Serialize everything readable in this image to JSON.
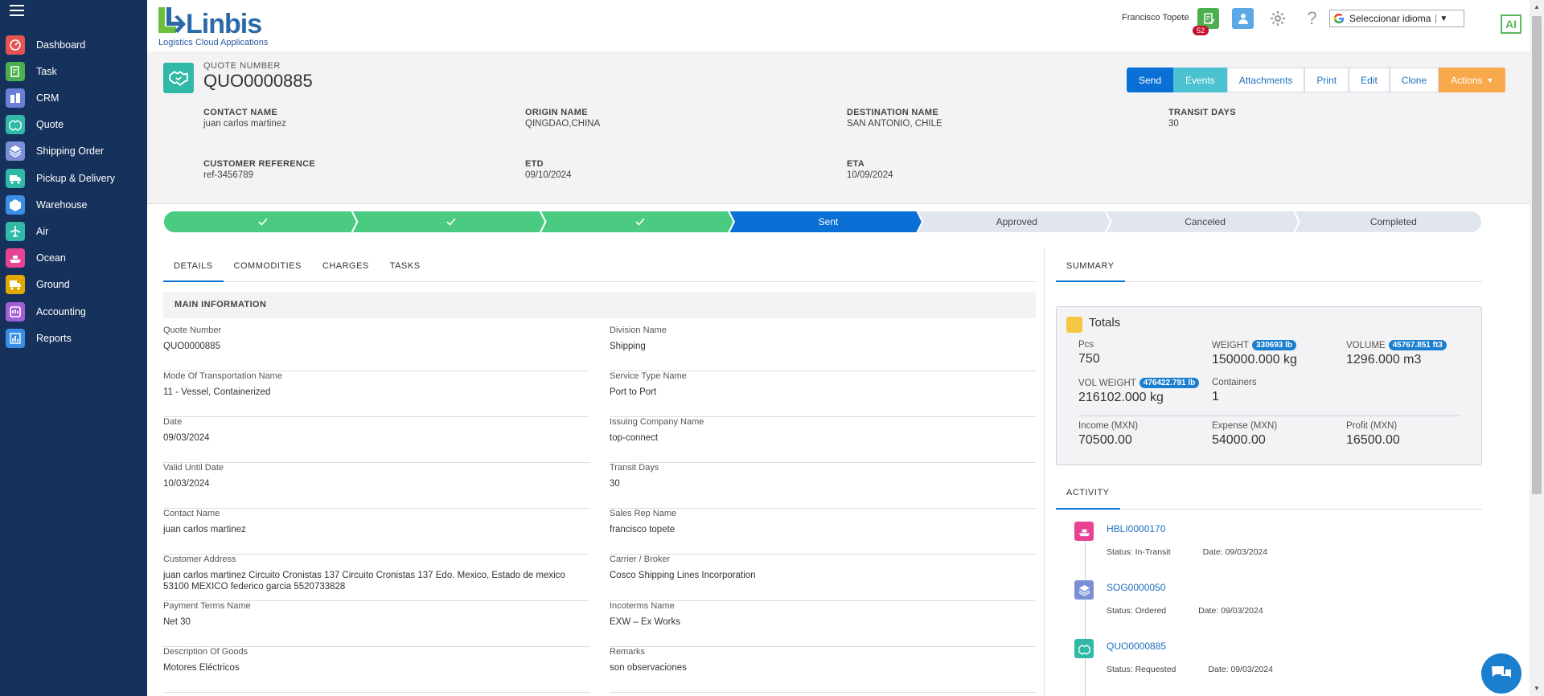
{
  "sidebar": {
    "items": [
      {
        "label": "Dashboard",
        "icon": "dashboard-icon",
        "color": "#e55353"
      },
      {
        "label": "Task",
        "icon": "task-icon",
        "color": "#4caf50"
      },
      {
        "label": "CRM",
        "icon": "crm-icon",
        "color": "#6a7fd6"
      },
      {
        "label": "Quote",
        "icon": "quote-icon",
        "color": "#2fb9a6"
      },
      {
        "label": "Shipping Order",
        "icon": "shipping-order-icon",
        "color": "#7b8fd6"
      },
      {
        "label": "Pickup & Delivery",
        "icon": "truck-icon",
        "color": "#2fb9a6"
      },
      {
        "label": "Warehouse",
        "icon": "warehouse-icon",
        "color": "#3a8ee6"
      },
      {
        "label": "Air",
        "icon": "plane-icon",
        "color": "#2fb9a6"
      },
      {
        "label": "Ocean",
        "icon": "ship-icon",
        "color": "#e84393"
      },
      {
        "label": "Ground",
        "icon": "ground-truck-icon",
        "color": "#e0a800"
      },
      {
        "label": "Accounting",
        "icon": "accounting-icon",
        "color": "#a35fd6"
      },
      {
        "label": "Reports",
        "icon": "reports-icon",
        "color": "#3a8ee6"
      }
    ]
  },
  "header": {
    "logo_word": "Linbis",
    "logo_tag": "Logistics Cloud Applications",
    "user_name": "Francisco Topete",
    "notification_count": "52",
    "language_label": "Seleccionar idioma",
    "language_arrow": "▼",
    "ai_label": "AI"
  },
  "quote": {
    "label": "QUOTE NUMBER",
    "number": "QUO0000885",
    "actions": [
      "Send",
      "Events",
      "Attachments",
      "Print",
      "Edit",
      "Clone",
      "Actions"
    ],
    "fields": [
      {
        "label": "CONTACT NAME",
        "value": "juan carlos martinez"
      },
      {
        "label": "ORIGIN NAME",
        "value": "QINGDAO,CHINA"
      },
      {
        "label": "DESTINATION NAME",
        "value": "SAN ANTONIO, CHILE"
      },
      {
        "label": "TRANSIT DAYS",
        "value": "30"
      },
      {
        "label": "CUSTOMER REFERENCE",
        "value": "ref-3456789"
      },
      {
        "label": "ETD",
        "value": "09/10/2024"
      },
      {
        "label": "ETA",
        "value": "10/09/2024"
      }
    ]
  },
  "path": {
    "steps": [
      {
        "label": "",
        "state": "done"
      },
      {
        "label": "",
        "state": "done"
      },
      {
        "label": "",
        "state": "done"
      },
      {
        "label": "Sent",
        "state": "current"
      },
      {
        "label": "Approved",
        "state": "pending"
      },
      {
        "label": "Canceled",
        "state": "pending"
      },
      {
        "label": "Completed",
        "state": "pending"
      }
    ],
    "colors": {
      "done": "#4bca81",
      "current": "#0b70d6",
      "pending": "#e1e5ee"
    }
  },
  "tabs": [
    "DETAILS",
    "COMMODITIES",
    "CHARGES",
    "TASKS"
  ],
  "main_info": {
    "title": "MAIN INFORMATION",
    "left": [
      {
        "label": "Quote Number",
        "value": "QUO0000885"
      },
      {
        "label": "Mode Of Transportation Name",
        "value": "11 - Vessel, Containerized"
      },
      {
        "label": "Date",
        "value": "09/03/2024"
      },
      {
        "label": "Valid Until Date",
        "value": "10/03/2024"
      },
      {
        "label": "Contact Name",
        "value": "juan carlos martinez"
      },
      {
        "label": "Customer Address",
        "value": "juan carlos martinez Circuito Cronistas 137 Circuito Cronistas 137 Edo. Mexico, Estado de mexico 53100 MEXICO federico garcia 5520733828"
      },
      {
        "label": "Payment Terms Name",
        "value": "Net 30"
      },
      {
        "label": "Description Of Goods",
        "value": "Motores Eléctricos"
      }
    ],
    "right": [
      {
        "label": "Division Name",
        "value": "Shipping"
      },
      {
        "label": "Service Type Name",
        "value": "Port to Port"
      },
      {
        "label": "Issuing Company Name",
        "value": "top-connect"
      },
      {
        "label": "Transit Days",
        "value": "30"
      },
      {
        "label": "Sales Rep Name",
        "value": "francisco topete"
      },
      {
        "label": "Carrier / Broker",
        "value": "Cosco Shipping Lines Incorporation"
      },
      {
        "label": "Incoterms Name",
        "value": "EXW – Ex Works"
      },
      {
        "label": "Remarks",
        "value": "son observaciones"
      }
    ]
  },
  "summary": {
    "tab": "SUMMARY",
    "totals_title": "Totals",
    "pcs": {
      "label": "Pcs",
      "value": "750"
    },
    "weight": {
      "label": "WEIGHT",
      "pill": "330693 lb",
      "value": "150000.000 kg"
    },
    "volume": {
      "label": "VOLUME",
      "pill": "45767.851 ft3",
      "value": "1296.000 m3"
    },
    "vol_weight": {
      "label": "VOL WEIGHT",
      "pill": "476422.791 lb",
      "value": "216102.000 kg"
    },
    "containers": {
      "label": "Containers",
      "value": "1"
    },
    "income": {
      "label": "Income (MXN)",
      "value": "70500.00"
    },
    "expense": {
      "label": "Expense (MXN)",
      "value": "54000.00"
    },
    "profit": {
      "label": "Profit (MXN)",
      "value": "16500.00"
    }
  },
  "activity": {
    "tab": "ACTIVITY",
    "items": [
      {
        "link": "HBLI0000170",
        "status": "Status:  In-Transit",
        "date": "Date:  09/03/2024",
        "icon": "ship-icon",
        "color": "#e84393"
      },
      {
        "link": "SOG0000050",
        "status": "Status:  Ordered",
        "date": "Date:  09/03/2024",
        "icon": "shipping-order-icon",
        "color": "#7b8fd6"
      },
      {
        "link": "QUO0000885",
        "status": "Status:  Requested",
        "date": "Date:  09/03/2024",
        "icon": "quote-icon",
        "color": "#2fb9a6"
      }
    ]
  }
}
